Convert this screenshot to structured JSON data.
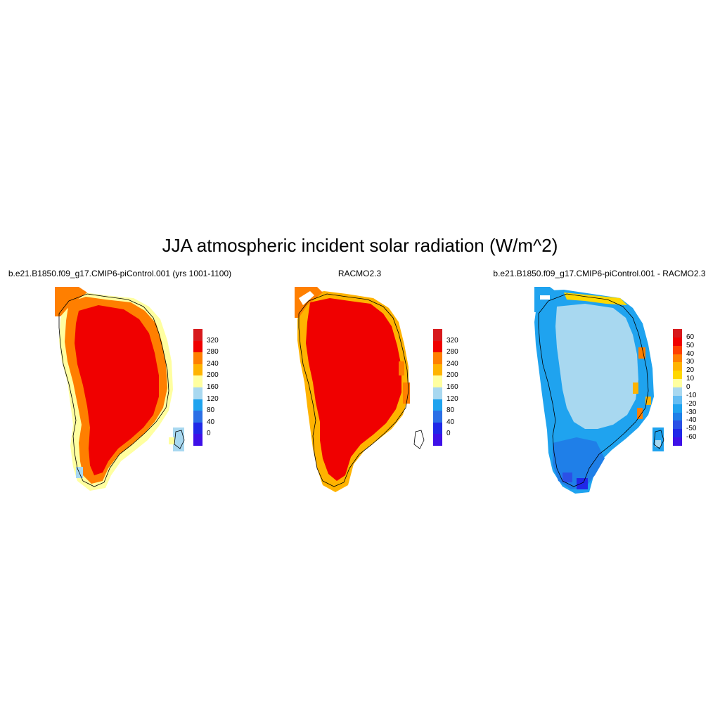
{
  "title": "JJA atmospheric incident solar radiation (W/m^2)",
  "panels": [
    {
      "id": "model",
      "title": "b.e21.B1850.f09_g17.CMIP6-piControl.001 (yrs 1001-1100)",
      "colorbar": {
        "labels": [
          "320",
          "280",
          "240",
          "200",
          "160",
          "120",
          "80",
          "40",
          "0"
        ],
        "colors": [
          "#d7191c",
          "#f00000",
          "#ff7f00",
          "#ffb300",
          "#ffffa0",
          "#a8d8f0",
          "#1fa3ef",
          "#2b6fe6",
          "#2028e8",
          "#3e10e8"
        ]
      }
    },
    {
      "id": "obs",
      "title": "RACMO2.3",
      "colorbar": {
        "labels": [
          "320",
          "280",
          "240",
          "200",
          "160",
          "120",
          "80",
          "40",
          "0"
        ],
        "colors": [
          "#d7191c",
          "#f00000",
          "#ff7f00",
          "#ffb300",
          "#ffffa0",
          "#a8d8f0",
          "#1fa3ef",
          "#2b6fe6",
          "#2028e8",
          "#3e10e8"
        ]
      }
    },
    {
      "id": "diff",
      "title": "b.e21.B1850.f09_g17.CMIP6-piControl.001 - RACMO2.3",
      "colorbar": {
        "labels": [
          "60",
          "50",
          "40",
          "30",
          "20",
          "10",
          "0",
          "-10",
          "-20",
          "-30",
          "-40",
          "-50",
          "-60"
        ],
        "colors": [
          "#d7191c",
          "#f00000",
          "#ff4000",
          "#ff7f00",
          "#ffb300",
          "#ffd800",
          "#ffffa0",
          "#a8d8f0",
          "#64bdf3",
          "#1fa3ef",
          "#1f7fe8",
          "#2b50e6",
          "#2028e8",
          "#3e10e8"
        ]
      }
    }
  ]
}
